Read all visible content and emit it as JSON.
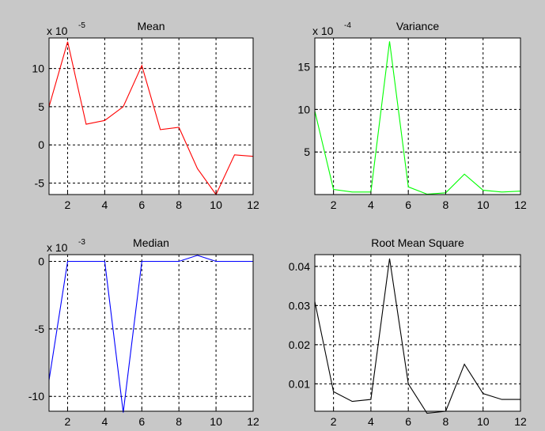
{
  "figure": {
    "background": "#c8c8c8"
  },
  "chart_data": [
    {
      "type": "line",
      "title": "Mean",
      "exponent_base": "x 10",
      "exponent_power": "-5",
      "color": "#ff0000",
      "grid": true,
      "x": [
        1,
        2,
        3,
        4,
        5,
        6,
        7,
        8,
        9,
        10,
        11,
        12
      ],
      "values": [
        5.0,
        13.5,
        2.7,
        3.2,
        5.0,
        10.4,
        2.0,
        2.3,
        -3.1,
        -6.5,
        -1.3,
        -1.5
      ],
      "xlim": [
        1,
        12
      ],
      "ylim": [
        -6.5,
        14
      ],
      "xticks": [
        2,
        4,
        6,
        8,
        10,
        12
      ],
      "yticks": [
        -5,
        0,
        5,
        10
      ]
    },
    {
      "type": "line",
      "title": "Variance",
      "exponent_base": "x 10",
      "exponent_power": "-4",
      "color": "#00ff00",
      "grid": true,
      "x": [
        1,
        2,
        3,
        4,
        5,
        6,
        7,
        8,
        9,
        10,
        11,
        12
      ],
      "values": [
        9.8,
        0.6,
        0.3,
        0.3,
        18.0,
        0.9,
        0.05,
        0.2,
        2.4,
        0.5,
        0.3,
        0.4
      ],
      "xlim": [
        1,
        12
      ],
      "ylim": [
        0,
        18.4
      ],
      "xticks": [
        2,
        4,
        6,
        8,
        10,
        12
      ],
      "yticks": [
        5,
        10,
        15
      ]
    },
    {
      "type": "line",
      "title": "Median",
      "exponent_base": "x 10",
      "exponent_power": "-3",
      "color": "#0000ff",
      "grid": true,
      "x": [
        1,
        2,
        3,
        4,
        5,
        6,
        7,
        8,
        9,
        10,
        11,
        12
      ],
      "values": [
        -8.8,
        0,
        0,
        0,
        -11.2,
        0,
        0,
        0,
        0.45,
        0,
        0,
        0
      ],
      "xlim": [
        1,
        12
      ],
      "ylim": [
        -11.1,
        0.5
      ],
      "xticks": [
        2,
        4,
        6,
        8,
        10,
        12
      ],
      "yticks": [
        -10,
        -5,
        0
      ]
    },
    {
      "type": "line",
      "title": "Root Mean Square",
      "exponent_base": "",
      "exponent_power": "",
      "color": "#000000",
      "grid": true,
      "x": [
        1,
        2,
        3,
        4,
        5,
        6,
        7,
        8,
        9,
        10,
        11,
        12
      ],
      "values": [
        0.031,
        0.008,
        0.0055,
        0.006,
        0.042,
        0.01,
        0.0025,
        0.003,
        0.015,
        0.0075,
        0.006,
        0.006
      ],
      "xlim": [
        1,
        12
      ],
      "ylim": [
        0.003,
        0.043
      ],
      "xticks": [
        2,
        4,
        6,
        8,
        10,
        12
      ],
      "yticks": [
        0.01,
        0.02,
        0.03,
        0.04
      ],
      "ytick_labels": [
        "0.01",
        "0.02",
        "0.03",
        "0.04"
      ]
    }
  ]
}
